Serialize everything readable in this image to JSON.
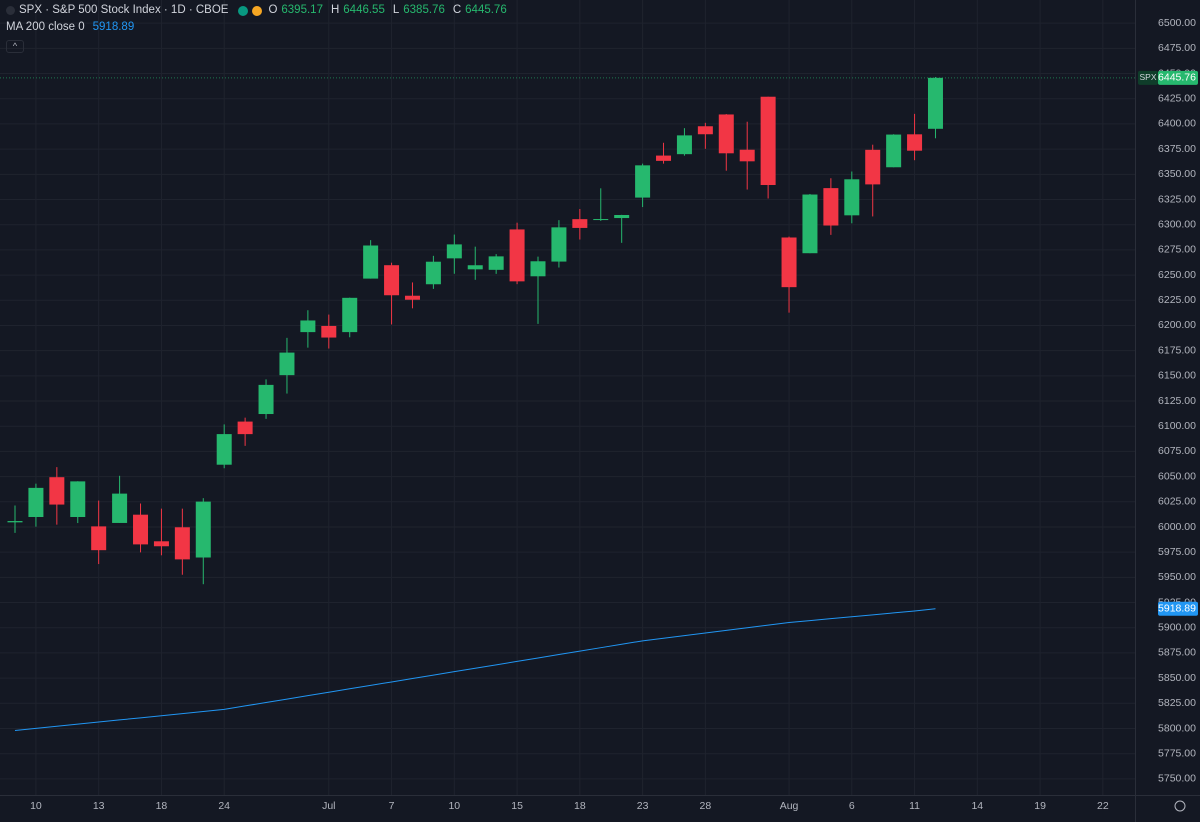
{
  "chart_data": {
    "type": "candlestick",
    "title": "SPX · S&P 500 Stock Index · 1D · CBOE",
    "ohlc_labels": [
      "O",
      "H",
      "L",
      "C"
    ],
    "categories": [
      null,
      "10",
      null,
      null,
      "13",
      null,
      null,
      "18",
      null,
      null,
      "24",
      null,
      null,
      null,
      null,
      "Jul",
      null,
      null,
      "7",
      null,
      null,
      "10",
      null,
      null,
      "15",
      null,
      null,
      "18",
      null,
      null,
      "23",
      null,
      null,
      "28",
      null,
      null,
      null,
      "Aug",
      null,
      null,
      "6",
      null,
      null,
      "11",
      null,
      null,
      "14",
      null,
      null,
      "19",
      null,
      null,
      "22"
    ],
    "series": [
      {
        "name": "SPX",
        "type": "candlestick",
        "up_color": "#26b86e",
        "down_color": "#f23645",
        "open": [
          6004.6,
          6009.9,
          6049.4,
          6009.9,
          6000.6,
          6004.0,
          6012.2,
          5985.8,
          5999.7,
          5969.7,
          6061.8,
          6104.6,
          6112.1,
          6150.7,
          6193.4,
          6199.5,
          6193.4,
          6246.5,
          6259.8,
          6229.5,
          6240.9,
          6266.6,
          6255.7,
          6255.2,
          6295.3,
          6248.8,
          6263.4,
          6305.5,
          6304.7,
          6306.6,
          6326.9,
          6368.6,
          6370.0,
          6397.7,
          6409.4,
          6374.4,
          6427.0,
          6287.3,
          6271.7,
          6336.3,
          6309.3,
          6374.3,
          6357.0,
          6389.7,
          6395.17,
          null,
          null,
          null,
          null,
          null,
          null,
          null,
          null
        ],
        "high": [
          6021.3,
          6043.0,
          6059.4,
          6045.4,
          6026.2,
          6050.8,
          6023.3,
          6018.2,
          6018.2,
          6028.6,
          6101.8,
          6108.5,
          6146.5,
          6187.7,
          6215.1,
          6210.8,
          6227.6,
          6284.7,
          6262.3,
          6242.7,
          6269.1,
          6290.2,
          6278.2,
          6270.8,
          6302.0,
          6268.3,
          6304.5,
          6315.6,
          6336.1,
          6309.8,
          6360.6,
          6381.3,
          6395.8,
          6401.1,
          6409.8,
          6402.2,
          6427.0,
          6288.2,
          6330.5,
          6346.1,
          6352.8,
          6379.4,
          6389.8,
          6410.0,
          6446.55,
          null,
          null,
          null,
          null,
          null,
          null,
          null,
          null
        ],
        "low": [
          5994.2,
          6000.3,
          6002.3,
          6003.9,
          5963.2,
          6004.0,
          5974.8,
          5971.9,
          5952.6,
          5943.2,
          6058.3,
          6080.5,
          6107.3,
          6132.4,
          6177.97,
          6177.1,
          6188.3,
          6246.5,
          6201.0,
          6217.0,
          6236.3,
          6251.3,
          6245.3,
          6251.2,
          6241.0,
          6201.6,
          6257.5,
          6285.3,
          6303.8,
          6282.0,
          6317.5,
          6360.6,
          6368.5,
          6375.3,
          6353.6,
          6334.9,
          6326.0,
          6212.7,
          6271.7,
          6289.9,
          6301.4,
          6308.2,
          6357.0,
          6364.0,
          6385.76,
          null,
          null,
          null,
          null,
          null,
          null,
          null,
          null
        ],
        "close": [
          6005.88,
          6038.81,
          6022.24,
          6045.26,
          5976.97,
          6033.11,
          5982.72,
          5980.87,
          5967.84,
          6025.17,
          6092.18,
          6092.16,
          6141.02,
          6173.07,
          6204.95,
          6188.0,
          6227.42,
          6279.35,
          6229.98,
          6225.52,
          6263.26,
          6280.46,
          6259.75,
          6268.56,
          6243.76,
          6263.7,
          6297.36,
          6296.79,
          6305.6,
          6309.62,
          6358.91,
          6363.35,
          6388.64,
          6389.77,
          6370.86,
          6362.9,
          6339.39,
          6238.01,
          6329.94,
          6299.19,
          6345.06,
          6340.0,
          6389.45,
          6373.45,
          6445.76,
          null,
          null,
          null,
          null,
          null,
          null,
          null,
          null
        ]
      },
      {
        "name": "MA 200 close 0",
        "type": "line",
        "color": "#2196f3",
        "values": [
          5798.0,
          5800.1,
          5802.2,
          5804.3,
          5806.4,
          5808.5,
          5810.6,
          5812.7,
          5814.8,
          5816.9,
          5819.0,
          5822.4,
          5825.8,
          5829.2,
          5832.6,
          5836.0,
          5839.4,
          5842.8,
          5846.2,
          5849.6,
          5853.0,
          5856.4,
          5859.8,
          5863.2,
          5866.6,
          5870.0,
          5873.4,
          5876.8,
          5880.2,
          5883.6,
          5887.0,
          5889.6,
          5892.2,
          5894.8,
          5897.4,
          5900.0,
          5902.6,
          5905.2,
          5907.1,
          5909.0,
          5910.9,
          5912.8,
          5914.7,
          5916.6,
          5918.89,
          null,
          null,
          null,
          null,
          null,
          null,
          null,
          null
        ]
      }
    ],
    "ylim": [
      5734,
      6523
    ],
    "yticks": [
      {
        "value": 5750,
        "label": "5750.00"
      },
      {
        "value": 5775,
        "label": "5775.00"
      },
      {
        "value": 5800,
        "label": "5800.00"
      },
      {
        "value": 5825,
        "label": "5825.00"
      },
      {
        "value": 5850,
        "label": "5850.00"
      },
      {
        "value": 5875,
        "label": "5875.00"
      },
      {
        "value": 5900,
        "label": "5900.00"
      },
      {
        "value": 5925,
        "label": "5925.00"
      },
      {
        "value": 5950,
        "label": "5950.00"
      },
      {
        "value": 5975,
        "label": "5975.00"
      },
      {
        "value": 6000,
        "label": "6000.00"
      },
      {
        "value": 6025,
        "label": "6025.00"
      },
      {
        "value": 6050,
        "label": "6050.00"
      },
      {
        "value": 6075,
        "label": "6075.00"
      },
      {
        "value": 6100,
        "label": "6100.00"
      },
      {
        "value": 6125,
        "label": "6125.00"
      },
      {
        "value": 6150,
        "label": "6150.00"
      },
      {
        "value": 6175,
        "label": "6175.00"
      },
      {
        "value": 6200,
        "label": "6200.00"
      },
      {
        "value": 6225,
        "label": "6225.00"
      },
      {
        "value": 6250,
        "label": "6250.00"
      },
      {
        "value": 6275,
        "label": "6275.00"
      },
      {
        "value": 6300,
        "label": "6300.00"
      },
      {
        "value": 6325,
        "label": "6325.00"
      },
      {
        "value": 6350,
        "label": "6350.00"
      },
      {
        "value": 6375,
        "label": "6375.00"
      },
      {
        "value": 6400,
        "label": "6400.00"
      },
      {
        "value": 6425,
        "label": "6425.00"
      },
      {
        "value": 6450,
        "label": "6450.00"
      },
      {
        "value": 6475,
        "label": "6475.00"
      },
      {
        "value": 6500,
        "label": "6500.00"
      }
    ],
    "grid": true
  }
}
